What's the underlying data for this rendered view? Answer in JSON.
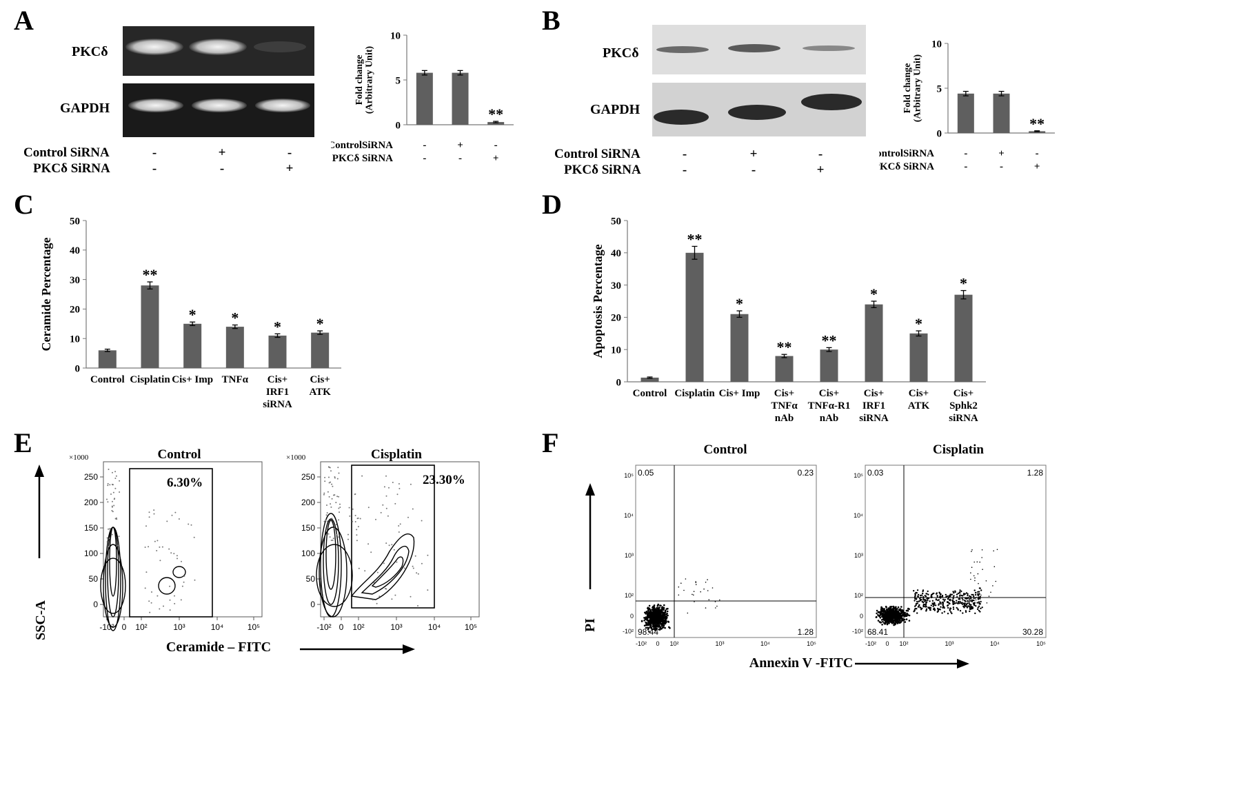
{
  "panels": {
    "A": {
      "label": "A",
      "blot_labels": [
        "PKCδ",
        "GAPDH"
      ],
      "treat_rows": [
        {
          "label": "Control SiRNA",
          "signs": [
            "-",
            "+",
            "-"
          ]
        },
        {
          "label": "PKCδ SiRNA",
          "signs": [
            "-",
            "-",
            "+"
          ]
        }
      ]
    },
    "B": {
      "label": "B",
      "blot_labels": [
        "PKCδ",
        "GAPDH"
      ],
      "treat_rows": [
        {
          "label": "Control SiRNA",
          "signs": [
            "-",
            "+",
            "-"
          ]
        },
        {
          "label": "PKCδ SiRNA",
          "signs": [
            "-",
            "-",
            "+"
          ]
        }
      ]
    },
    "C": {
      "label": "C"
    },
    "D": {
      "label": "D"
    },
    "E": {
      "label": "E",
      "plots": [
        {
          "title": "Control",
          "gate_pct": "6.30%"
        },
        {
          "title": "Cisplatin",
          "gate_pct": "23.30%"
        }
      ],
      "y_axis_label": "SSC-A",
      "x_axis_label": "Ceramide – FITC",
      "y_scale_label": "×1000",
      "y_ticks": [
        "0",
        "50",
        "100",
        "150",
        "200",
        "250"
      ],
      "x_ticks": [
        "-10²",
        "0",
        "10²",
        "10³",
        "10⁴",
        "10⁵"
      ]
    },
    "F": {
      "label": "F",
      "plots": [
        {
          "title": "Control",
          "quadrants": {
            "ul": "0.05",
            "ur": "0.23",
            "ll": "98.44",
            "lr": "1.28"
          }
        },
        {
          "title": "Cisplatin",
          "quadrants": {
            "ul": "0.03",
            "ur": "1.28",
            "ll": "68.41",
            "lr": "30.28"
          }
        }
      ],
      "y_axis_label": "PI",
      "x_axis_label": "Annexin V -FITC",
      "y_ticks": [
        "10⁵",
        "10⁴",
        "10³",
        "10²",
        "0",
        "-10²"
      ],
      "x_ticks": [
        "-10²",
        "0",
        "10²",
        "10³",
        "10⁴",
        "10⁵"
      ]
    }
  },
  "chart_data": [
    {
      "id": "A-bar",
      "type": "bar",
      "ylabel": "Fold change (Arbitrary Unit)",
      "ylim": [
        0,
        10
      ],
      "yticks": [
        0,
        5,
        10
      ],
      "values": [
        5.8,
        5.8,
        0.3
      ],
      "errors": [
        0.25,
        0.25,
        0.08
      ],
      "annotations": [
        "",
        "",
        "**"
      ],
      "treat_rows": [
        {
          "label": "ControlSiRNA",
          "signs": [
            "-",
            "+",
            "-"
          ]
        },
        {
          "label": "PKCδ SiRNA",
          "signs": [
            "-",
            "-",
            "+"
          ]
        }
      ]
    },
    {
      "id": "B-bar",
      "type": "bar",
      "ylabel": "Fold change (Arbitrary Unit)",
      "ylim": [
        0,
        10
      ],
      "yticks": [
        0,
        5,
        10
      ],
      "values": [
        4.4,
        4.4,
        0.2
      ],
      "errors": [
        0.25,
        0.25,
        0.05
      ],
      "annotations": [
        "",
        "",
        "**"
      ],
      "treat_rows": [
        {
          "label": "ControlSiRNA",
          "signs": [
            "-",
            "+",
            "-"
          ]
        },
        {
          "label": "PKCδ SiRNA",
          "signs": [
            "-",
            "-",
            "+"
          ]
        }
      ]
    },
    {
      "id": "C-bar",
      "type": "bar",
      "ylabel": "Ceramide Percentage",
      "ylim": [
        0,
        50
      ],
      "yticks": [
        0,
        10,
        20,
        30,
        40,
        50
      ],
      "categories": [
        "Control",
        "Cisplatin",
        "Cis+ Imp",
        "TNFα",
        "Cis+\nIRF1\nsiRNA",
        "Cis+\nATK"
      ],
      "values": [
        6,
        28,
        15,
        14,
        11,
        12
      ],
      "errors": [
        0.4,
        1.2,
        0.6,
        0.6,
        0.6,
        0.6
      ],
      "annotations": [
        "",
        "**",
        "*",
        "*",
        "*",
        "*"
      ]
    },
    {
      "id": "D-bar",
      "type": "bar",
      "ylabel": "Apoptosis Percentage",
      "ylim": [
        0,
        50
      ],
      "yticks": [
        0,
        10,
        20,
        30,
        40,
        50
      ],
      "categories": [
        "Control",
        "Cisplatin",
        "Cis+ Imp",
        "Cis+\nTNFα\nnAb",
        "Cis+\nTNFα-R1\nnAb",
        "Cis+\nIRF1\nsiRNA",
        "Cis+\nATK",
        "Cis+\nSphk2\nsiRNA"
      ],
      "values": [
        1.3,
        40,
        21,
        8,
        10,
        24,
        15,
        27
      ],
      "errors": [
        0.2,
        2,
        1,
        0.5,
        0.6,
        1,
        0.8,
        1.3
      ],
      "annotations": [
        "",
        "**",
        "*",
        "**",
        "**",
        "*",
        "*",
        "*"
      ]
    }
  ]
}
